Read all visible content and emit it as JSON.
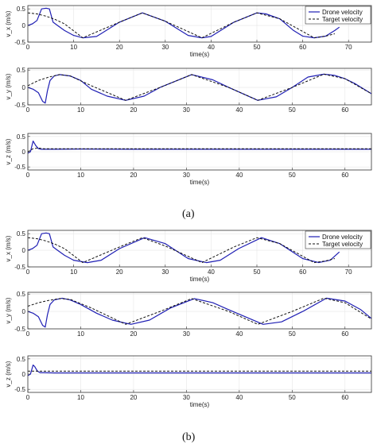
{
  "panel_labels": [
    "(a)",
    "(b)"
  ],
  "colors": {
    "drone": "#1f1fb4",
    "target": "#111111",
    "axis": "#333333",
    "grid": "#e6e6e6"
  },
  "chart_data": [
    {
      "panel": "a",
      "type": "line",
      "ylabel": "v_x (m/s)",
      "xlabel": "time(s)",
      "xlim": [
        0,
        75
      ],
      "ylim": [
        -0.5,
        0.6
      ],
      "yticks": [
        -0.5,
        0,
        0.5
      ],
      "xticks": [
        0,
        10,
        20,
        30,
        40,
        50,
        60,
        70
      ],
      "legend": [
        "Drone velocity",
        "Target velocity"
      ],
      "legend_position": "top-right",
      "series": [
        {
          "name": "Drone velocity",
          "x": [
            0,
            1,
            2,
            3,
            4,
            4.7,
            5.5,
            6.5,
            8,
            10,
            12,
            15,
            20,
            25,
            30,
            35,
            38,
            40,
            45,
            50,
            52,
            55,
            58,
            60,
            62.5,
            65,
            67,
            68
          ],
          "y": [
            0,
            0.05,
            0.15,
            0.5,
            0.52,
            0.5,
            0.1,
            0.0,
            -0.15,
            -0.3,
            -0.37,
            -0.33,
            0.1,
            0.38,
            0.13,
            -0.3,
            -0.37,
            -0.33,
            0.1,
            0.38,
            0.35,
            0.2,
            -0.15,
            -0.32,
            -0.37,
            -0.32,
            -0.15,
            -0.05
          ]
        },
        {
          "name": "Target velocity",
          "x": [
            0,
            2,
            4,
            6,
            8,
            12,
            20,
            25,
            30,
            38,
            45,
            50,
            55,
            62.5,
            65,
            67
          ],
          "y": [
            0.38,
            0.35,
            0.28,
            0.18,
            0.05,
            -0.37,
            0.1,
            0.38,
            0.13,
            -0.37,
            0.1,
            0.38,
            0.2,
            -0.37,
            -0.32,
            -0.25
          ]
        }
      ]
    },
    {
      "panel": "a",
      "type": "line",
      "ylabel": "v_y (m/s)",
      "xlabel": "",
      "xlim": [
        0,
        65
      ],
      "ylim": [
        -0.5,
        0.55
      ],
      "yticks": [
        -0.5,
        0,
        0.5
      ],
      "xticks": [
        0,
        10,
        20,
        30,
        40,
        50,
        60
      ],
      "series": [
        {
          "name": "Drone velocity",
          "x": [
            0,
            1,
            2,
            2.8,
            3.3,
            3.7,
            4.2,
            5,
            6,
            8,
            10,
            12,
            15,
            18.5,
            22,
            25,
            31,
            35,
            38,
            43.5,
            47,
            50,
            53,
            56,
            58,
            60,
            62,
            65
          ],
          "y": [
            0,
            -0.05,
            -0.15,
            -0.4,
            -0.45,
            -0.1,
            0.2,
            0.33,
            0.37,
            0.33,
            0.2,
            -0.05,
            -0.25,
            -0.37,
            -0.25,
            0.0,
            0.37,
            0.22,
            0.0,
            -0.37,
            -0.27,
            0.0,
            0.3,
            0.38,
            0.35,
            0.25,
            0.1,
            -0.18
          ]
        },
        {
          "name": "Target velocity",
          "x": [
            0,
            2,
            4,
            6,
            8,
            12,
            18.5,
            25,
            31,
            38,
            43.5,
            50,
            56,
            60,
            65
          ],
          "y": [
            0.05,
            0.2,
            0.3,
            0.37,
            0.33,
            0.05,
            -0.37,
            0.0,
            0.37,
            0.0,
            -0.37,
            0.0,
            0.38,
            0.25,
            -0.18
          ]
        }
      ]
    },
    {
      "panel": "a",
      "type": "line",
      "ylabel": "v_z (m/s)",
      "xlabel": "time(s)",
      "xlim": [
        0,
        65
      ],
      "ylim": [
        -0.6,
        0.6
      ],
      "yticks": [
        -0.5,
        0,
        0.5
      ],
      "xticks": [
        0,
        10,
        20,
        30,
        40,
        50,
        60
      ],
      "series": [
        {
          "name": "Drone velocity",
          "x": [
            0,
            0.5,
            1,
            1.5,
            2,
            2.5,
            3,
            5,
            10,
            20,
            30,
            40,
            50,
            60,
            65
          ],
          "y": [
            -0.05,
            0.0,
            0.35,
            0.2,
            0.1,
            0.08,
            0.08,
            0.08,
            0.09,
            0.08,
            0.08,
            0.08,
            0.08,
            0.08,
            0.08
          ]
        },
        {
          "name": "Target velocity",
          "x": [
            0,
            1,
            2,
            3,
            5,
            10,
            20,
            30,
            40,
            50,
            60,
            65
          ],
          "y": [
            0.0,
            0.1,
            0.12,
            0.1,
            0.1,
            0.1,
            0.1,
            0.1,
            0.1,
            0.1,
            0.1,
            0.1
          ]
        }
      ]
    },
    {
      "panel": "b",
      "type": "line",
      "ylabel": "v_x (m/s)",
      "xlabel": "time(s)",
      "xlim": [
        0,
        75
      ],
      "ylim": [
        -0.5,
        0.6
      ],
      "yticks": [
        -0.5,
        0,
        0.5
      ],
      "xticks": [
        0,
        10,
        20,
        30,
        40,
        50,
        60,
        70
      ],
      "legend": [
        "Drone velocity",
        "Target velocity"
      ],
      "legend_position": "top-right",
      "series": [
        {
          "name": "Drone velocity",
          "x": [
            0,
            1,
            2,
            3,
            4,
            4.7,
            5.5,
            6.5,
            8,
            10,
            13,
            16,
            20,
            25.5,
            30,
            35,
            39,
            42,
            46,
            51,
            55,
            60,
            63.5,
            66,
            68
          ],
          "y": [
            0,
            0.05,
            0.15,
            0.5,
            0.52,
            0.5,
            0.1,
            0.0,
            -0.15,
            -0.3,
            -0.37,
            -0.3,
            0.05,
            0.38,
            0.2,
            -0.25,
            -0.37,
            -0.3,
            0.05,
            0.38,
            0.2,
            -0.25,
            -0.37,
            -0.3,
            -0.05
          ]
        },
        {
          "name": "Target velocity",
          "x": [
            0,
            2,
            4,
            6,
            8,
            12,
            20,
            25,
            30,
            38,
            45,
            50,
            55,
            62.5,
            65,
            67
          ],
          "y": [
            0.38,
            0.35,
            0.28,
            0.18,
            0.05,
            -0.37,
            0.1,
            0.38,
            0.13,
            -0.37,
            0.1,
            0.38,
            0.2,
            -0.37,
            -0.32,
            -0.25
          ]
        }
      ]
    },
    {
      "panel": "b",
      "type": "line",
      "ylabel": "v_y (m/s)",
      "xlabel": "",
      "xlim": [
        0,
        65
      ],
      "ylim": [
        -0.5,
        0.55
      ],
      "yticks": [
        -0.5,
        0,
        0.5
      ],
      "xticks": [
        0,
        10,
        20,
        30,
        40,
        50,
        60
      ],
      "series": [
        {
          "name": "Drone velocity",
          "x": [
            0,
            1,
            2,
            2.8,
            3.3,
            3.7,
            4.2,
            5,
            6.5,
            8,
            10,
            13,
            16,
            19.5,
            23,
            27,
            31.5,
            35,
            38,
            44.5,
            48,
            52,
            56.5,
            60,
            63,
            65
          ],
          "y": [
            0,
            -0.05,
            -0.15,
            -0.4,
            -0.45,
            -0.1,
            0.2,
            0.33,
            0.38,
            0.33,
            0.2,
            -0.05,
            -0.25,
            -0.37,
            -0.25,
            0.1,
            0.37,
            0.25,
            0.05,
            -0.37,
            -0.3,
            0.0,
            0.38,
            0.3,
            0.05,
            -0.2
          ]
        },
        {
          "name": "Target velocity",
          "x": [
            0,
            2,
            4,
            6,
            8,
            12,
            18.5,
            25,
            31,
            38,
            43.5,
            50,
            56,
            60,
            65
          ],
          "y": [
            0.15,
            0.25,
            0.32,
            0.37,
            0.35,
            0.1,
            -0.37,
            0.0,
            0.37,
            0.0,
            -0.37,
            0.0,
            0.38,
            0.25,
            -0.22
          ]
        }
      ]
    },
    {
      "panel": "b",
      "type": "line",
      "ylabel": "v_z (m/s)",
      "xlabel": "time(s)",
      "xlim": [
        0,
        65
      ],
      "ylim": [
        -0.6,
        0.6
      ],
      "yticks": [
        -0.5,
        0,
        0.5
      ],
      "xticks": [
        0,
        10,
        20,
        30,
        40,
        50,
        60
      ],
      "series": [
        {
          "name": "Drone velocity",
          "x": [
            0,
            0.5,
            1,
            1.3,
            1.8,
            2.3,
            3,
            5,
            10,
            20,
            30,
            40,
            50,
            60,
            65
          ],
          "y": [
            -0.05,
            0.0,
            0.3,
            0.25,
            0.1,
            0.05,
            0.05,
            0.04,
            0.04,
            0.04,
            0.04,
            0.04,
            0.04,
            0.04,
            0.04
          ]
        },
        {
          "name": "Target velocity",
          "x": [
            0,
            1,
            2,
            3,
            5,
            10,
            20,
            30,
            40,
            50,
            60,
            65
          ],
          "y": [
            0.1,
            0.1,
            0.1,
            0.1,
            0.1,
            0.1,
            0.1,
            0.1,
            0.1,
            0.1,
            0.1,
            0.1
          ]
        }
      ]
    }
  ]
}
